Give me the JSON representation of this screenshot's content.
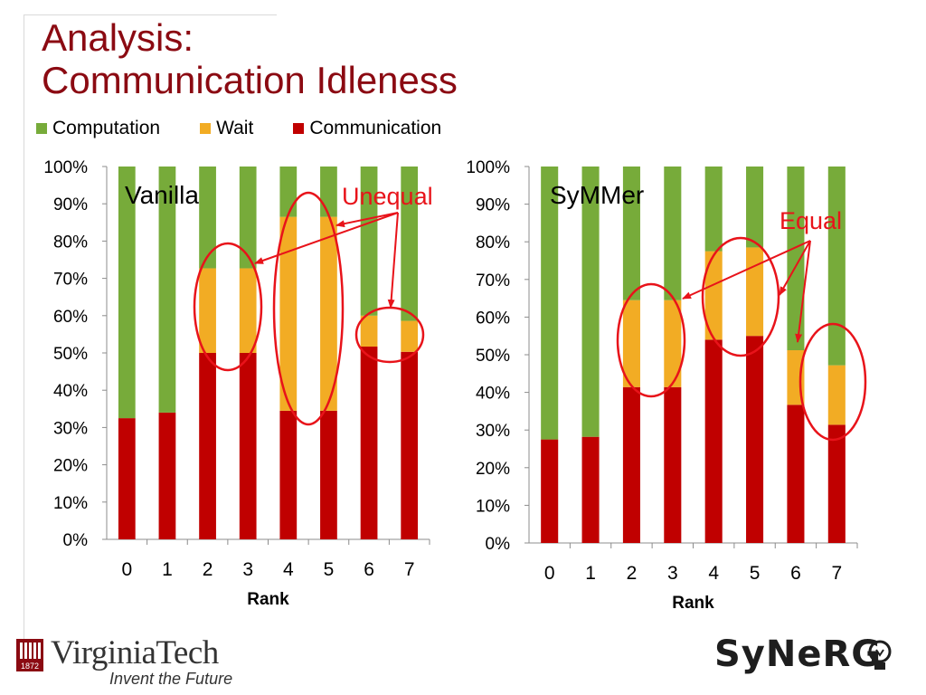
{
  "slide": {
    "title_line1": "Analysis:",
    "title_line2": "Communication Idleness"
  },
  "legend": [
    {
      "label": "Computation",
      "color": "#77ab3a"
    },
    {
      "label": "Wait",
      "color": "#f2ac24"
    },
    {
      "label": "Communication",
      "color": "#c00000"
    }
  ],
  "colors": {
    "computation": "#77ab3a",
    "wait": "#f2ac24",
    "communication": "#c00000",
    "annotation": "#e8131a",
    "title": "#8b0a12"
  },
  "chart_data": [
    {
      "type": "bar",
      "stacked": true,
      "title": "Vanilla",
      "xlabel": "Rank",
      "ylabel": "",
      "categories": [
        "0",
        "1",
        "2",
        "3",
        "4",
        "5",
        "6",
        "7"
      ],
      "yticks": [
        "0%",
        "10%",
        "20%",
        "30%",
        "40%",
        "50%",
        "60%",
        "70%",
        "80%",
        "90%",
        "100%"
      ],
      "ylim": [
        0,
        100
      ],
      "series": [
        {
          "name": "Communication",
          "values": [
            32.5,
            34,
            50,
            50,
            34.5,
            34.5,
            51.7,
            50.3
          ]
        },
        {
          "name": "Wait",
          "values": [
            0,
            0,
            22.7,
            22.7,
            52,
            52,
            8.3,
            8.3
          ]
        },
        {
          "name": "Computation",
          "values": [
            67.5,
            66,
            27.3,
            27.3,
            13.5,
            13.5,
            40,
            41.4
          ]
        }
      ],
      "annotation": "Unequal"
    },
    {
      "type": "bar",
      "stacked": true,
      "title": "SyMMer",
      "xlabel": "Rank",
      "ylabel": "",
      "categories": [
        "0",
        "1",
        "2",
        "3",
        "4",
        "5",
        "6",
        "7"
      ],
      "yticks": [
        "0%",
        "10%",
        "20%",
        "30%",
        "40%",
        "50%",
        "60%",
        "70%",
        "80%",
        "90%",
        "100%"
      ],
      "ylim": [
        0,
        100
      ],
      "series": [
        {
          "name": "Communication",
          "values": [
            27.5,
            28.2,
            41.4,
            41.4,
            54,
            55,
            36.7,
            31.4
          ]
        },
        {
          "name": "Wait",
          "values": [
            0,
            0,
            23.1,
            23.1,
            23.5,
            23.5,
            14.5,
            15.8
          ]
        },
        {
          "name": "Computation",
          "values": [
            72.5,
            71.8,
            35.5,
            35.5,
            22.5,
            21.5,
            48.8,
            52.8
          ]
        }
      ],
      "annotation": "Equal"
    }
  ],
  "logos": {
    "virginia_tech": "VirginiaTech",
    "virginia_tech_year": "1872",
    "virginia_tech_tagline": "Invent the Future",
    "synergy": "SyNeRG"
  }
}
